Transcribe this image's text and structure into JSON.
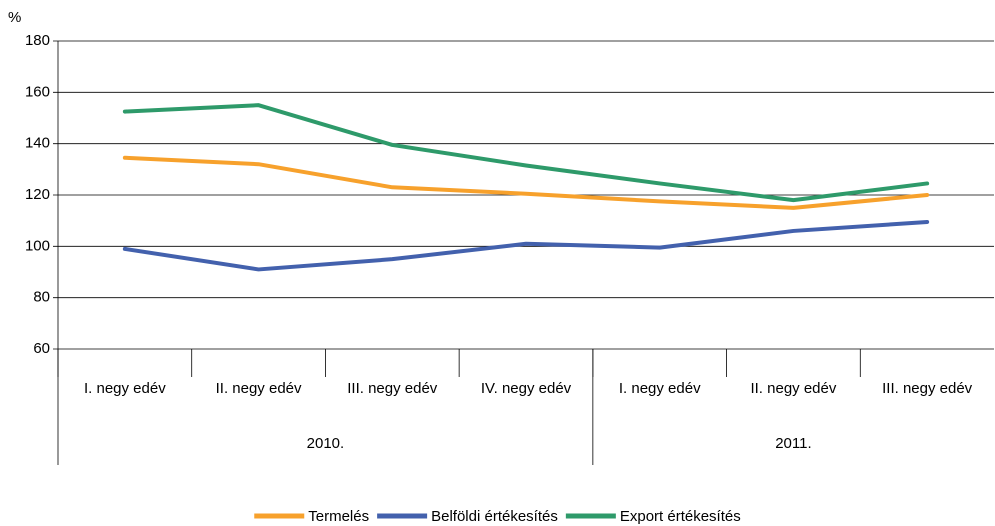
{
  "chart_data": {
    "type": "line",
    "y_unit": "%",
    "categories": [
      "I. negy edév",
      "II. negy edév",
      "III. negy edév",
      "IV. negy edév",
      "I. negy edév",
      "II. negy edév",
      "III. negy edév"
    ],
    "groups": [
      {
        "label": "2010.",
        "span": 4
      },
      {
        "label": "2011.",
        "span": 3
      }
    ],
    "series": [
      {
        "name": "Termelés",
        "color": "#f7a12c",
        "values": [
          134.5,
          132,
          123,
          120.5,
          117.5,
          115,
          120
        ]
      },
      {
        "name": "Belföldi értékesítés",
        "color": "#4361ad",
        "values": [
          99,
          91,
          95,
          101,
          99.5,
          106,
          109.5
        ]
      },
      {
        "name": "Export értékesítés",
        "color": "#2e9a6a",
        "values": [
          152.5,
          155,
          139.5,
          131.5,
          124.5,
          118,
          124.5
        ]
      }
    ],
    "ylim": [
      60,
      180
    ],
    "yticks": [
      60,
      80,
      100,
      120,
      140,
      160,
      180
    ],
    "grid": true,
    "legend": "bottom"
  }
}
